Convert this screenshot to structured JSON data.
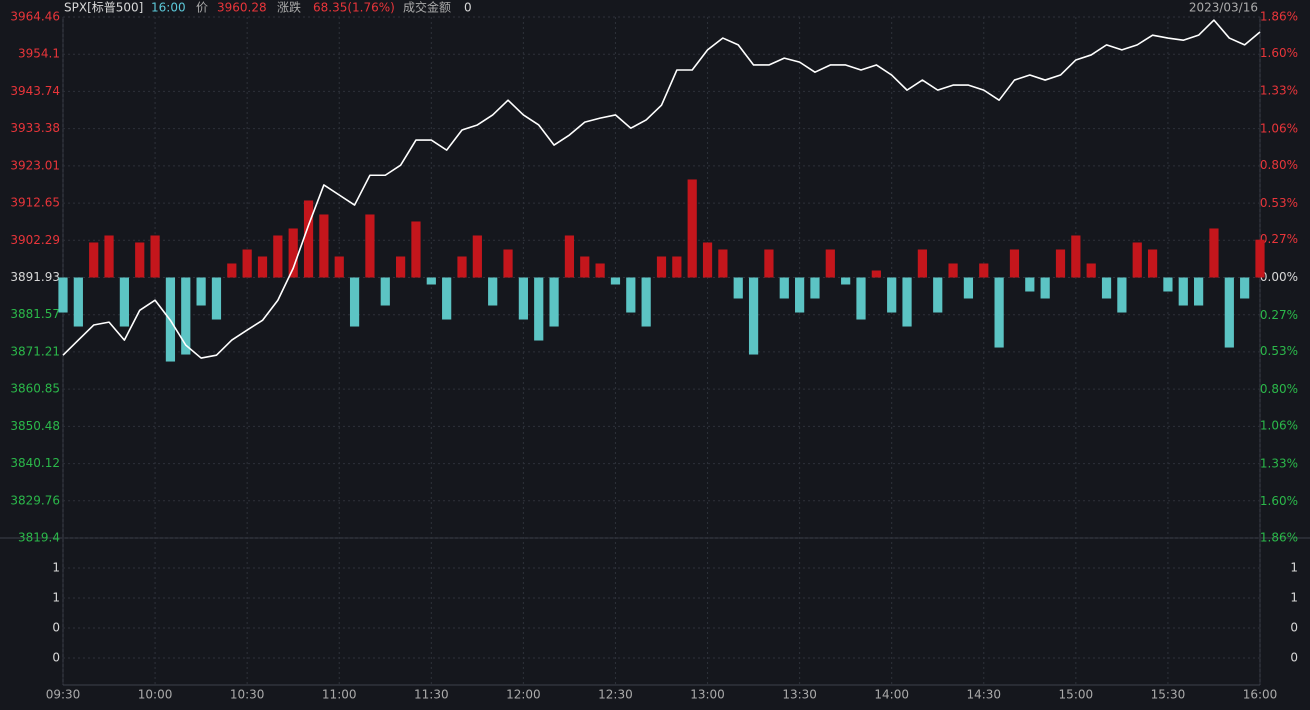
{
  "chart_data": {
    "type": "intraday",
    "header": {
      "symbol": "SPX[标普500]",
      "time": "16:00",
      "price_label": "价",
      "price": "3960.28",
      "change_label": "涨跌",
      "change": "68.35(1.76%)",
      "amount_label": "成交金额",
      "amount": "0",
      "date": "2023/03/16"
    },
    "x": [
      "09:30",
      "09:35",
      "09:40",
      "09:45",
      "09:50",
      "09:55",
      "10:00",
      "10:05",
      "10:10",
      "10:15",
      "10:20",
      "10:25",
      "10:30",
      "10:35",
      "10:40",
      "10:45",
      "10:50",
      "10:55",
      "11:00",
      "11:05",
      "11:10",
      "11:15",
      "11:20",
      "11:25",
      "11:30",
      "11:35",
      "11:40",
      "11:45",
      "11:50",
      "11:55",
      "12:00",
      "12:05",
      "12:10",
      "12:15",
      "12:20",
      "12:25",
      "12:30",
      "12:35",
      "12:40",
      "12:45",
      "12:50",
      "12:55",
      "13:00",
      "13:05",
      "13:10",
      "13:15",
      "13:20",
      "13:25",
      "13:30",
      "13:35",
      "13:40",
      "13:45",
      "13:50",
      "13:55",
      "14:00",
      "14:05",
      "14:10",
      "14:15",
      "14:20",
      "14:25",
      "14:30",
      "14:35",
      "14:40",
      "14:45",
      "14:50",
      "14:55",
      "15:00",
      "15:05",
      "15:10",
      "15:15",
      "15:20",
      "15:25",
      "15:30",
      "15:35",
      "15:40",
      "15:45",
      "15:50",
      "15:55",
      "16:00"
    ],
    "series": [
      {
        "color": "#ffffff",
        "values": [
          3870.3,
          3874.5,
          3878.7,
          3879.5,
          3874.5,
          3882.8,
          3885.6,
          3880.0,
          3873.1,
          3869.5,
          3870.3,
          3874.5,
          3877.3,
          3880.0,
          3885.6,
          3894.5,
          3906.5,
          3917.7,
          3914.9,
          3912.1,
          3920.4,
          3920.4,
          3923.2,
          3930.2,
          3930.2,
          3927.4,
          3933.0,
          3934.4,
          3937.2,
          3941.3,
          3937.2,
          3934.4,
          3928.8,
          3931.6,
          3935.2,
          3936.3,
          3937.2,
          3933.5,
          3935.8,
          3939.9,
          3949.7,
          3949.7,
          3955.3,
          3958.6,
          3956.7,
          3951.1,
          3951.1,
          3953.0,
          3951.9,
          3949.1,
          3951.1,
          3951.1,
          3949.7,
          3951.1,
          3948.3,
          3944.1,
          3946.9,
          3944.1,
          3945.5,
          3945.5,
          3944.1,
          3941.3,
          3946.9,
          3948.3,
          3946.9,
          3948.3,
          3952.5,
          3953.9,
          3956.7,
          3955.3,
          3956.7,
          3959.4,
          3958.6,
          3958.0,
          3959.4,
          3963.6,
          3958.6,
          3956.7,
          3960.28
        ]
      },
      {
        "axis": "y2",
        "up_color": "#c4161c",
        "down_color": "#5cc4c4",
        "values": [
          -0.25,
          -0.35,
          0.25,
          0.3,
          -0.35,
          0.25,
          0.3,
          -0.6,
          -0.55,
          -0.2,
          -0.3,
          0.1,
          0.2,
          0.15,
          0.3,
          0.35,
          0.55,
          0.45,
          0.15,
          -0.35,
          0.45,
          -0.2,
          0.15,
          0.4,
          -0.05,
          -0.3,
          0.15,
          0.3,
          -0.2,
          0.2,
          -0.3,
          -0.45,
          -0.35,
          0.3,
          0.15,
          0.1,
          -0.05,
          -0.25,
          -0.35,
          0.15,
          0.15,
          0.7,
          0.25,
          0.2,
          -0.15,
          -0.55,
          0.2,
          -0.15,
          -0.25,
          -0.15,
          0.2,
          -0.05,
          -0.3,
          0.05,
          -0.25,
          -0.35,
          0.2,
          -0.25,
          0.1,
          -0.15,
          0.1,
          -0.5,
          0.2,
          -0.1,
          -0.15,
          0.2,
          0.3,
          0.1,
          -0.15,
          -0.25,
          0.25,
          0.2,
          -0.1,
          -0.2,
          -0.2,
          0.35,
          -0.5,
          -0.15,
          0.27
        ]
      }
    ],
    "xticks": [
      "09:30",
      "10:00",
      "10:30",
      "11:00",
      "11:30",
      "12:00",
      "12:30",
      "13:00",
      "13:30",
      "14:00",
      "14:30",
      "15:00",
      "15:30",
      "16:00"
    ],
    "ylim": [
      3819.4,
      3964.46
    ],
    "yticks": [
      3964.46,
      3954.1,
      3943.74,
      3933.38,
      3923.01,
      3912.65,
      3902.29,
      3891.93,
      3881.57,
      3871.21,
      3860.85,
      3850.48,
      3840.12,
      3829.76,
      3819.4
    ],
    "y2lim": [
      -1.86,
      1.86
    ],
    "y2ticks": [
      {
        "value": 1.86,
        "label": "1.86%"
      },
      {
        "value": 1.6,
        "label": "1.60%"
      },
      {
        "value": 1.33,
        "label": "1.33%"
      },
      {
        "value": 1.06,
        "label": "1.06%"
      },
      {
        "value": 0.8,
        "label": "0.80%"
      },
      {
        "value": 0.53,
        "label": "0.53%"
      },
      {
        "value": 0.27,
        "label": "0.27%"
      },
      {
        "value": 0,
        "label": "0.00%"
      },
      {
        "value": -0.27,
        "label": "0.27%"
      },
      {
        "value": -0.53,
        "label": "0.53%"
      },
      {
        "value": -0.8,
        "label": "0.80%"
      },
      {
        "value": -1.06,
        "label": "1.06%"
      },
      {
        "value": -1.33,
        "label": "1.33%"
      },
      {
        "value": -1.6,
        "label": "1.60%"
      },
      {
        "value": -1.86,
        "label": "1.86%"
      }
    ],
    "up_label_color": "#e8353a",
    "down_label_color": "#2bb84a",
    "flat_label_color": "#d8d8d8",
    "lower_panel": {
      "labels": [
        "1",
        "1",
        "0",
        "0"
      ]
    },
    "grid": true
  }
}
